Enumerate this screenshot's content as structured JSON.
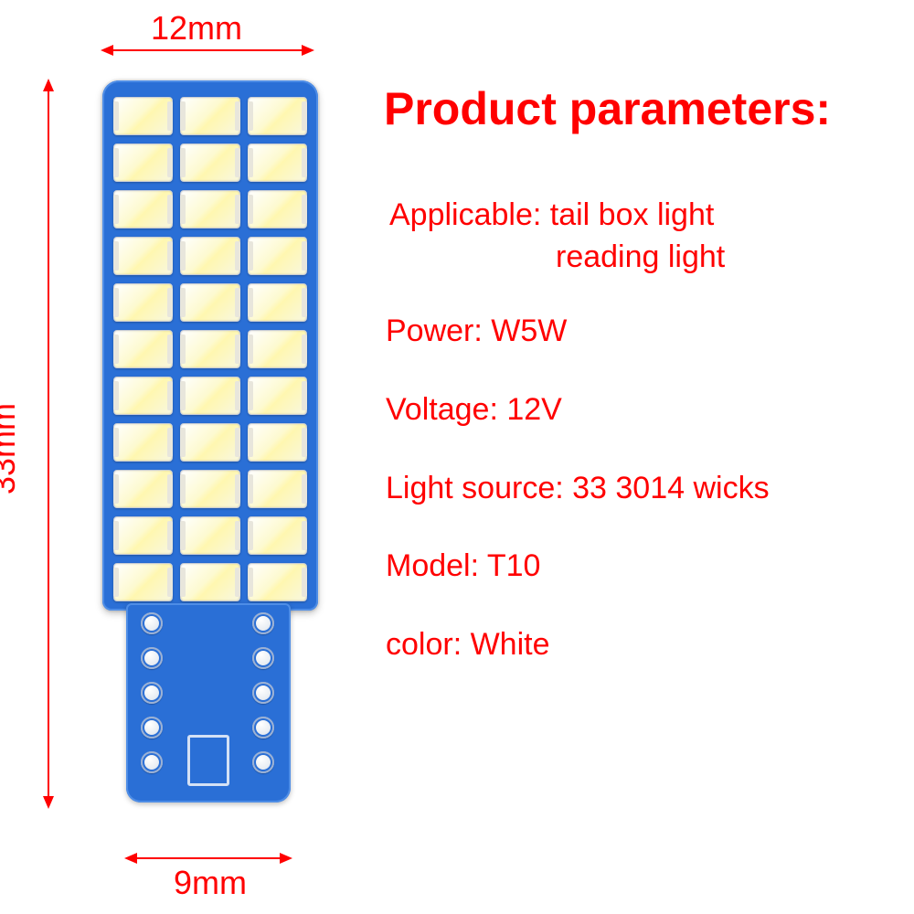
{
  "dimensions": {
    "width_top": {
      "value_mm": 12,
      "label": "12mm"
    },
    "height_left": {
      "value_mm": 33,
      "label": "33mm"
    },
    "width_bottom": {
      "value_mm": 9,
      "label": "9mm"
    }
  },
  "pcb": {
    "board_color": "#2a6fd6",
    "led_rows": 11,
    "led_cols": 3,
    "led_total": 33,
    "led_color": "#fdfad0",
    "tab_holes_per_side": 5
  },
  "params": {
    "title": "Product parameters:",
    "applicable_line1": "Applicable: tail box light",
    "applicable_line2": "reading light",
    "power": "Power: W5W",
    "voltage": "Voltage: 12V",
    "light_source": "Light source: 33 3014 wicks",
    "model": "Model: T10",
    "color": "color: White"
  },
  "style": {
    "accent_color": "#ff0000",
    "background": "#ffffff"
  }
}
